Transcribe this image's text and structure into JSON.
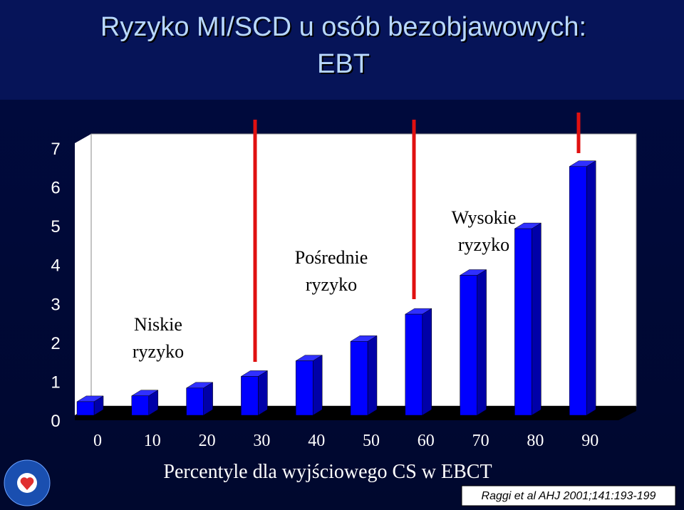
{
  "chart_data": {
    "type": "bar3d",
    "title": "Ryzyko MI/SCD u osób bezobjawowych:",
    "subtitle": "EBT",
    "x_label": "Percentyle dla wyjściowego CS w EBCT",
    "categories": [
      "0",
      "10",
      "20",
      "30",
      "40",
      "50",
      "60",
      "70",
      "80",
      "90"
    ],
    "values": [
      0.35,
      0.5,
      0.7,
      1.0,
      1.4,
      1.9,
      2.6,
      3.6,
      4.8,
      6.4
    ],
    "color": "#0000ff",
    "ylim": [
      0,
      7
    ],
    "yticks": [
      0,
      1,
      2,
      3,
      4,
      5,
      6,
      7
    ],
    "annotations": [
      {
        "line1": "Niskie",
        "line2": "ryzyko"
      },
      {
        "line1": "Pośrednie",
        "line2": "ryzyko"
      },
      {
        "line1": "Wysokie",
        "line2": "ryzyko"
      }
    ],
    "source": "Raggi et al AHJ 2001;141:193-199"
  }
}
